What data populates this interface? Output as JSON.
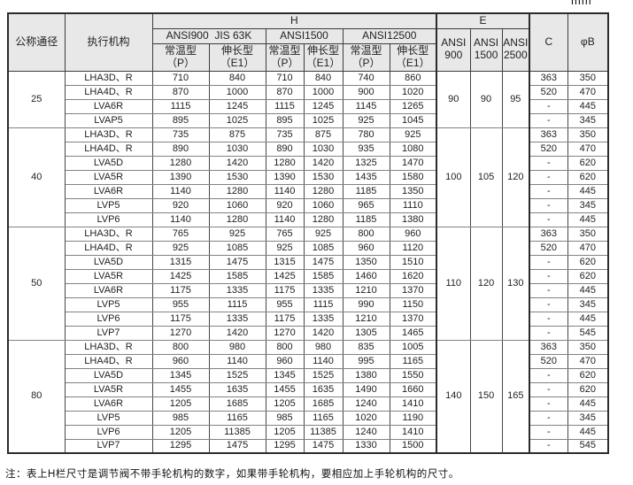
{
  "unit_label": "mm",
  "note": "注：表上H栏尺寸是调节阀不带手轮机构的数字，如果带手轮机构，要相应加上手轮机构的尺寸。",
  "table": {
    "headers": {
      "diameter": "公称通径",
      "actuator": "执行机构",
      "h_group": "H",
      "e_group": "E",
      "c": "C",
      "phi_b": "φB",
      "h_subgroups": [
        "ANSI900  JIS 63K",
        "ANSI1500",
        "ANSI12500"
      ],
      "temp_type": "常温型\n（P）",
      "ext_type": "伸长型\n（E1）",
      "e_cols": [
        "ANSI\n900",
        "ANSI\n1500",
        "ANSI\n2500"
      ]
    },
    "groups": [
      {
        "diameter": "25",
        "e_values": [
          "90",
          "90",
          "95"
        ],
        "rows": [
          {
            "actuator": "LHA3D、R",
            "h": [
              "710",
              "840",
              "710",
              "840",
              "740",
              "860"
            ],
            "c": "363",
            "b": "350"
          },
          {
            "actuator": "LHA4D、R",
            "h": [
              "870",
              "1000",
              "870",
              "1000",
              "900",
              "1020"
            ],
            "c": "520",
            "b": "470"
          },
          {
            "actuator": "LVA6R",
            "h": [
              "1115",
              "1245",
              "1115",
              "1245",
              "1145",
              "1265"
            ],
            "c": "-",
            "b": "445"
          },
          {
            "actuator": "LVAP5",
            "h": [
              "895",
              "1025",
              "895",
              "1025",
              "925",
              "1045"
            ],
            "c": "-",
            "b": "345"
          }
        ]
      },
      {
        "diameter": "40",
        "e_values": [
          "100",
          "105",
          "120"
        ],
        "rows": [
          {
            "actuator": "LHA3D、R",
            "h": [
              "735",
              "875",
              "735",
              "875",
              "780",
              "925"
            ],
            "c": "363",
            "b": "350"
          },
          {
            "actuator": "LHA4D、R",
            "h": [
              "890",
              "1030",
              "890",
              "1030",
              "935",
              "1080"
            ],
            "c": "520",
            "b": "470"
          },
          {
            "actuator": "LVA5D",
            "h": [
              "1280",
              "1420",
              "1280",
              "1420",
              "1325",
              "1470"
            ],
            "c": "-",
            "b": "620"
          },
          {
            "actuator": "LVA5R",
            "h": [
              "1390",
              "1530",
              "1390",
              "1530",
              "1435",
              "1580"
            ],
            "c": "-",
            "b": "620"
          },
          {
            "actuator": "LVA6R",
            "h": [
              "1140",
              "1280",
              "1140",
              "1280",
              "1185",
              "1350"
            ],
            "c": "-",
            "b": "445"
          },
          {
            "actuator": "LVP5",
            "h": [
              "920",
              "1060",
              "920",
              "1060",
              "965",
              "1110"
            ],
            "c": "-",
            "b": "345"
          },
          {
            "actuator": "LVP6",
            "h": [
              "1140",
              "1280",
              "1140",
              "1280",
              "1185",
              "1380"
            ],
            "c": "-",
            "b": "445"
          }
        ]
      },
      {
        "diameter": "50",
        "e_values": [
          "110",
          "120",
          "130"
        ],
        "rows": [
          {
            "actuator": "LHA3D、R",
            "h": [
              "765",
              "925",
              "765",
              "925",
              "800",
              "960"
            ],
            "c": "363",
            "b": "350"
          },
          {
            "actuator": "LHA4D、R",
            "h": [
              "925",
              "1085",
              "925",
              "1085",
              "960",
              "1120"
            ],
            "c": "520",
            "b": "470"
          },
          {
            "actuator": "LVA5D",
            "h": [
              "1315",
              "1475",
              "1315",
              "1475",
              "1350",
              "1510"
            ],
            "c": "-",
            "b": "620"
          },
          {
            "actuator": "LVA5R",
            "h": [
              "1425",
              "1585",
              "1425",
              "1585",
              "1460",
              "1620"
            ],
            "c": "-",
            "b": "620"
          },
          {
            "actuator": "LVA6R",
            "h": [
              "1175",
              "1335",
              "1175",
              "1335",
              "1210",
              "1370"
            ],
            "c": "-",
            "b": "445"
          },
          {
            "actuator": "LVP5",
            "h": [
              "955",
              "1115",
              "955",
              "1115",
              "990",
              "1150"
            ],
            "c": "-",
            "b": "345"
          },
          {
            "actuator": "LVP6",
            "h": [
              "1175",
              "1335",
              "1175",
              "1335",
              "1210",
              "1370"
            ],
            "c": "-",
            "b": "445"
          },
          {
            "actuator": "LVP7",
            "h": [
              "1270",
              "1420",
              "1270",
              "1420",
              "1305",
              "1465"
            ],
            "c": "-",
            "b": "545"
          }
        ]
      },
      {
        "diameter": "80",
        "e_values": [
          "140",
          "150",
          "165"
        ],
        "rows": [
          {
            "actuator": "LHA3D、R",
            "h": [
              "800",
              "980",
              "800",
              "980",
              "835",
              "1005"
            ],
            "c": "363",
            "b": "350"
          },
          {
            "actuator": "LHA4D、R",
            "h": [
              "960",
              "1140",
              "960",
              "1140",
              "995",
              "1165"
            ],
            "c": "520",
            "b": "470"
          },
          {
            "actuator": "LVA5D",
            "h": [
              "1345",
              "1525",
              "1345",
              "1525",
              "1380",
              "1550"
            ],
            "c": "-",
            "b": "620"
          },
          {
            "actuator": "LVA5R",
            "h": [
              "1455",
              "1635",
              "1455",
              "1635",
              "1490",
              "1660"
            ],
            "c": "-",
            "b": "620"
          },
          {
            "actuator": "LVA6R",
            "h": [
              "1205",
              "1685",
              "1205",
              "1685",
              "1240",
              "1410"
            ],
            "c": "-",
            "b": "445"
          },
          {
            "actuator": "LVP5",
            "h": [
              "985",
              "1165",
              "985",
              "1165",
              "1020",
              "1190"
            ],
            "c": "-",
            "b": "345"
          },
          {
            "actuator": "LVP6",
            "h": [
              "1205",
              "11385",
              "1205",
              "11385",
              "1240",
              "1410"
            ],
            "c": "-",
            "b": "445"
          },
          {
            "actuator": "LVP7",
            "h": [
              "1295",
              "1475",
              "1295",
              "1475",
              "1330",
              "1500"
            ],
            "c": "-",
            "b": "545"
          }
        ]
      }
    ]
  }
}
